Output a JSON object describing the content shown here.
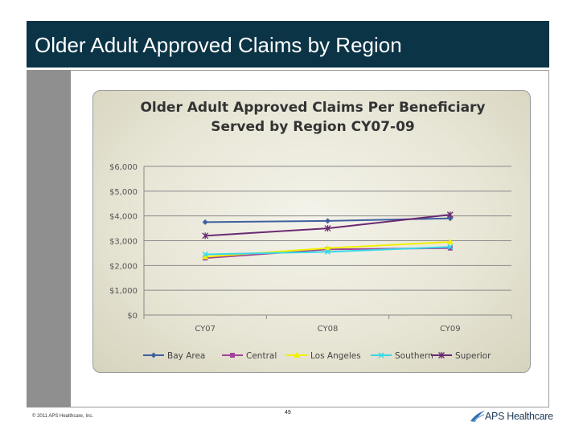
{
  "slide": {
    "title": "Older Adult Approved Claims by Region",
    "footer": "© 2011 APS Healthcare, Inc.",
    "page_number": "49",
    "logo_text": "APS Healthcare"
  },
  "colors": {
    "title_bar": "#0b3446",
    "Bay Area": "#3f5fa0",
    "Central": "#a0449a",
    "Los Angeles": "#f2f000",
    "Southern": "#38d8e8",
    "Superior": "#6a2a72"
  },
  "chart_data": {
    "type": "line",
    "title": "Older Adult Approved Claims Per Beneficiary Served by Region CY07-09",
    "title_lines": [
      "Older Adult Approved Claims Per Beneficiary",
      "Served by Region CY07-09"
    ],
    "categories": [
      "CY07",
      "CY08",
      "CY09"
    ],
    "ylim": [
      0,
      6000
    ],
    "yticks": [
      0,
      1000,
      2000,
      3000,
      4000,
      5000,
      6000
    ],
    "ytick_labels": [
      "$0",
      "$1,000",
      "$2,000",
      "$3,000",
      "$4,000",
      "$5,000",
      "$6,000"
    ],
    "xlabel": "",
    "ylabel": "",
    "legend_position": "bottom",
    "series": [
      {
        "name": "Bay Area",
        "values": [
          3750,
          3800,
          3900
        ],
        "marker": "diamond"
      },
      {
        "name": "Central",
        "values": [
          2300,
          2650,
          2700
        ],
        "marker": "square"
      },
      {
        "name": "Los Angeles",
        "values": [
          2350,
          2700,
          2950
        ],
        "marker": "triangle"
      },
      {
        "name": "Southern",
        "values": [
          2450,
          2550,
          2750
        ],
        "marker": "x"
      },
      {
        "name": "Superior",
        "values": [
          3200,
          3500,
          4050
        ],
        "marker": "star"
      }
    ]
  }
}
